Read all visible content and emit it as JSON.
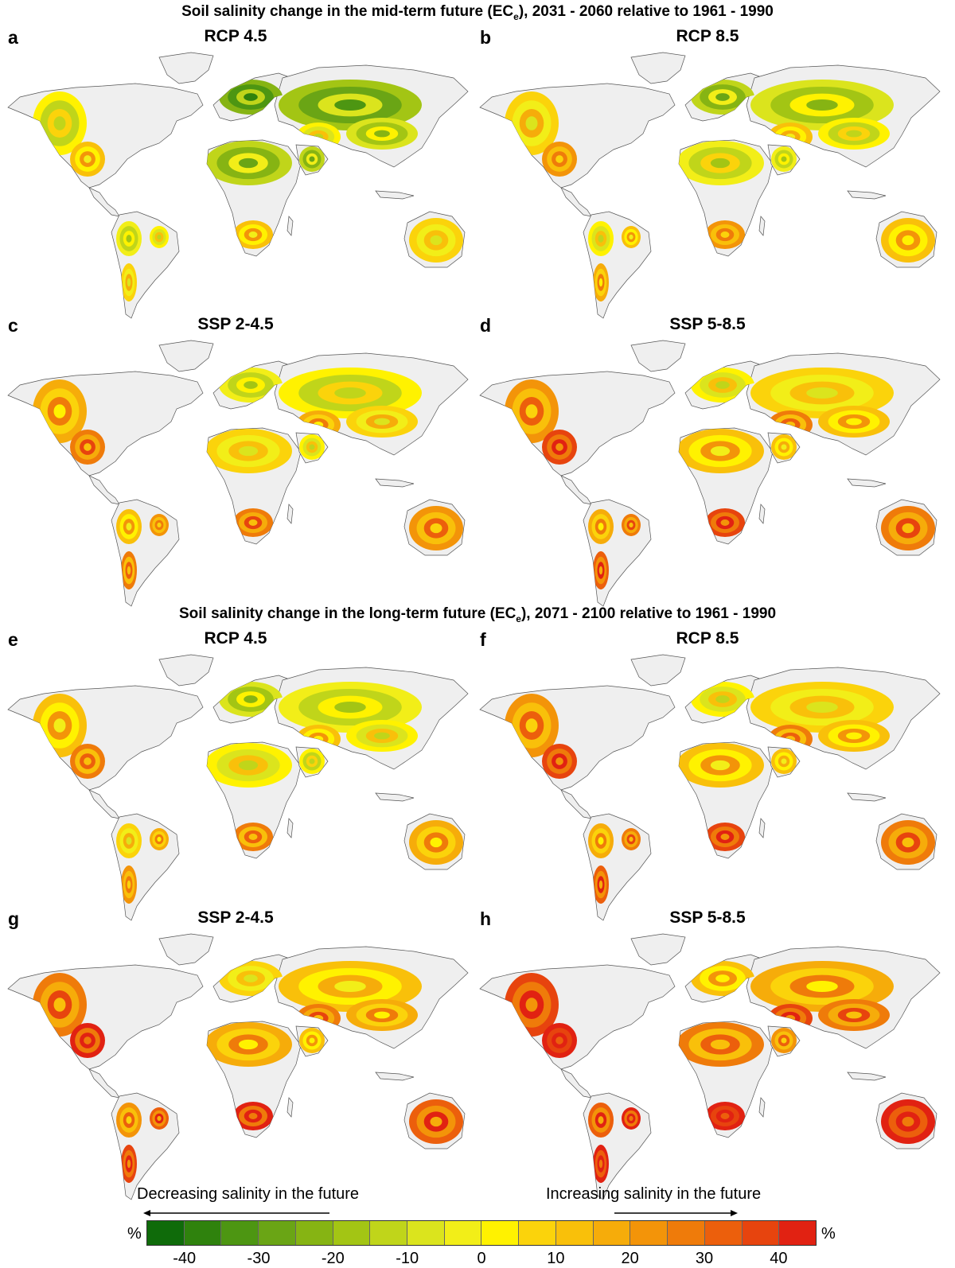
{
  "section_mid": {
    "title_before": "Soil salinity change in the mid-term future (EC",
    "title_sub": "e",
    "title_after": "), 2031 - 2060 relative to 1961 - 1990"
  },
  "section_long": {
    "title_before": "Soil salinity change in the long-term future (EC",
    "title_sub": "e",
    "title_after": "), 2071 - 2100 relative to 1961 - 1990"
  },
  "panels": [
    {
      "letter": "a",
      "scenario": "RCP 4.5",
      "bias": -0.2
    },
    {
      "letter": "b",
      "scenario": "RCP 8.5",
      "bias": 0.0
    },
    {
      "letter": "c",
      "scenario": "SSP 2-4.5",
      "bias": 0.2
    },
    {
      "letter": "d",
      "scenario": "SSP 5-8.5",
      "bias": 0.35
    },
    {
      "letter": "e",
      "scenario": "RCP 4.5",
      "bias": 0.1
    },
    {
      "letter": "f",
      "scenario": "RCP 8.5",
      "bias": 0.35
    },
    {
      "letter": "g",
      "scenario": "SSP 2-4.5",
      "bias": 0.45
    },
    {
      "letter": "h",
      "scenario": "SSP 5-8.5",
      "bias": 0.65
    }
  ],
  "colors": {
    "land_background": "#efefef",
    "coastline": "#555555",
    "scale": [
      "#0f6b0a",
      "#2f820d",
      "#4d9612",
      "#6aa515",
      "#86b413",
      "#a3c514",
      "#c0d51a",
      "#dbe41d",
      "#f2ee18",
      "#fff200",
      "#fbd30b",
      "#f9c00a",
      "#f6ac0a",
      "#f39409",
      "#ef7b0a",
      "#ec5f0c",
      "#e7440e",
      "#e12212"
    ]
  },
  "legend": {
    "decreasing_label": "Decreasing salinity in the future",
    "increasing_label": "Increasing salinity in the future",
    "unit_left": "%",
    "unit_right": "%",
    "tick_labels": [
      "-40",
      "-30",
      "-20",
      "-10",
      "0",
      "10",
      "20",
      "30",
      "40"
    ]
  }
}
